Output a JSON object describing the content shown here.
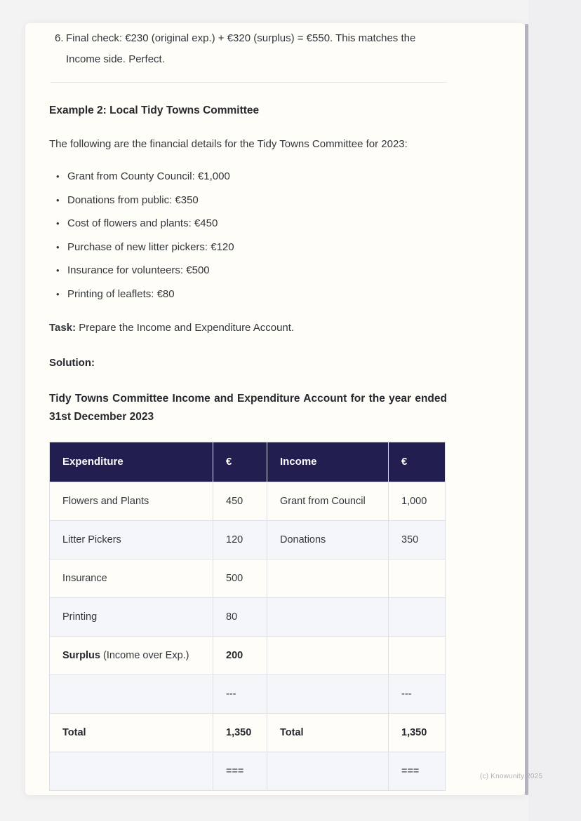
{
  "colors": {
    "page_bg": "#fffdf8",
    "text": "#32363c",
    "table_header_bg": "#221e4f",
    "table_border": "#dde1e7",
    "table_row_alt": "#f5f6f9"
  },
  "page": {
    "numbered_item": {
      "number": "6.",
      "text": "Final check: €230 (original exp.) + €320 (surplus) = €550. This matches the Income side. Perfect."
    },
    "example_heading": "Example 2: Local Tidy Towns Committee",
    "intro": "The following are the financial details for the Tidy Towns Committee for 2023:",
    "bullet_glyph": "•",
    "bullets": [
      "Grant from County Council: €1,000",
      "Donations from public: €350",
      "Cost of flowers and plants: €450",
      "Purchase of new litter pickers: €120",
      "Insurance for volunteers: €500",
      "Printing of leaflets: €80"
    ],
    "task_label": "Task:",
    "task_text": " Prepare the Income and Expenditure Account.",
    "solution_label": "Solution:",
    "account_title": "Tidy Towns Committee Income and Expenditure Account for the year ended 31st December 2023",
    "watermark": "(c) Knowunity 2025"
  },
  "table": {
    "headers": [
      "Expenditure",
      "€",
      "Income",
      "€"
    ],
    "rows": [
      {
        "cells": [
          [
            {
              "text": "Flowers and Plants"
            }
          ],
          [
            {
              "text": "450"
            }
          ],
          [
            {
              "text": "Grant from Council"
            }
          ],
          [
            {
              "text": "1,000"
            }
          ]
        ]
      },
      {
        "cells": [
          [
            {
              "text": "Litter Pickers"
            }
          ],
          [
            {
              "text": "120"
            }
          ],
          [
            {
              "text": "Donations"
            }
          ],
          [
            {
              "text": "350"
            }
          ]
        ]
      },
      {
        "cells": [
          [
            {
              "text": "Insurance"
            }
          ],
          [
            {
              "text": "500"
            }
          ],
          [],
          []
        ]
      },
      {
        "cells": [
          [
            {
              "text": "Printing"
            }
          ],
          [
            {
              "text": "80"
            }
          ],
          [],
          []
        ]
      },
      {
        "cells": [
          [
            {
              "text": "Surplus",
              "bold": true
            },
            {
              "text": " (Income over Exp.)"
            }
          ],
          [
            {
              "text": "200",
              "bold": true
            }
          ],
          [],
          []
        ]
      },
      {
        "cells": [
          [],
          [
            {
              "text": "---"
            }
          ],
          [],
          [
            {
              "text": "---"
            }
          ]
        ]
      },
      {
        "cells": [
          [
            {
              "text": "Total",
              "bold": true
            }
          ],
          [
            {
              "text": "1,350",
              "bold": true
            }
          ],
          [
            {
              "text": "Total",
              "bold": true
            }
          ],
          [
            {
              "text": "1,350",
              "bold": true
            }
          ]
        ]
      },
      {
        "cells": [
          [],
          [
            {
              "text": "==="
            }
          ],
          [],
          [
            {
              "text": "==="
            }
          ]
        ]
      }
    ]
  }
}
